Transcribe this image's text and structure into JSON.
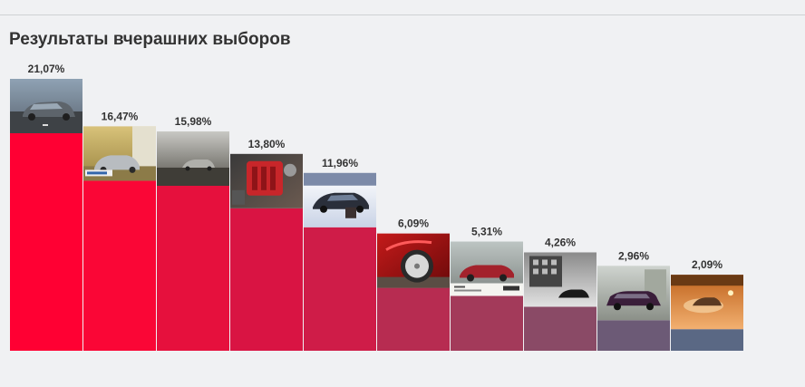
{
  "page": {
    "title": "Результаты вчерашних выборов"
  },
  "chart_data": {
    "type": "bar",
    "title": "Результаты вчерашних выборов",
    "xlabel": "",
    "ylabel": "",
    "ylim": [
      0,
      21.07
    ],
    "grid": false,
    "legend": "none",
    "value_labels": [
      "21,07%",
      "16,47%",
      "15,98%",
      "13,80%",
      "11,96%",
      "6,09%",
      "5,31%",
      "4,26%",
      "2,96%",
      "2,09%"
    ],
    "values": [
      21.07,
      16.47,
      15.98,
      13.8,
      11.96,
      6.09,
      5.31,
      4.26,
      2.96,
      2.09
    ],
    "bar_colors": [
      "#ff0033",
      "#fa0636",
      "#e6103d",
      "#d91443",
      "#cf1c48",
      "#b72c51",
      "#a33a5a",
      "#8a4a66",
      "#6c5a76",
      "#5a6884"
    ]
  }
}
